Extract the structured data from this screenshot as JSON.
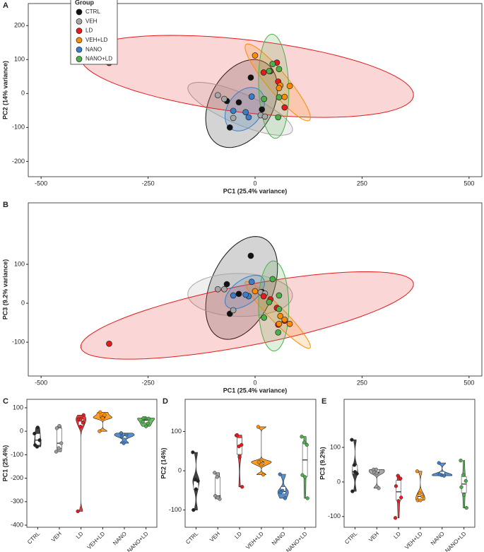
{
  "chart_data": [
    {
      "type": "scatter",
      "panel": "A",
      "xlabel": "PC1 (25.4% variance)",
      "ylabel": "PC2 (14% variance)",
      "xlim": [
        -530,
        530
      ],
      "ylim": [
        -245,
        265
      ],
      "xticks": [
        -500,
        -250,
        0,
        250,
        500
      ],
      "yticks": [
        -200,
        -100,
        0,
        100,
        200
      ],
      "legend_title": "Group",
      "legend": "top-left",
      "series": [
        {
          "name": "CTRL",
          "color": "#111111",
          "x": [
            -10,
            -66,
            -38,
            -59,
            16
          ],
          "values": [
            47,
            -22,
            -26,
            -100,
            -47
          ]
        },
        {
          "name": "VEH",
          "color": "#a6a6a6",
          "x": [
            -87,
            -72,
            -51,
            13,
            23
          ],
          "values": [
            -5,
            -16,
            -72,
            -64,
            -68
          ]
        },
        {
          "name": "LD",
          "color": "#e41a1c",
          "x": [
            -341,
            20,
            36,
            51,
            54,
            69
          ],
          "values": [
            90,
            62,
            66,
            91,
            35,
            -41
          ]
        },
        {
          "name": "VEH+LD",
          "color": "#ff8c00",
          "x": [
            0,
            59,
            69,
            81,
            56
          ],
          "values": [
            112,
            24,
            -10,
            22,
            16
          ]
        },
        {
          "name": "NANO",
          "color": "#3a7dc9",
          "x": [
            -8,
            -51,
            -15,
            -22
          ],
          "values": [
            -9,
            -51,
            -70,
            -55
          ]
        },
        {
          "name": "NANO+LD",
          "color": "#4daf4a",
          "x": [
            41,
            56,
            33,
            56,
            21,
            54
          ],
          "values": [
            87,
            72,
            66,
            -11,
            -16,
            -70
          ]
        }
      ]
    },
    {
      "type": "scatter",
      "panel": "B",
      "xlabel": "PC1 (25.4% variance)",
      "ylabel": "PC3 (9.2% variance)",
      "xlim": [
        -530,
        530
      ],
      "ylim": [
        -187,
        258
      ],
      "xticks": [
        -500,
        -250,
        0,
        250,
        500
      ],
      "yticks": [
        -100,
        0,
        100
      ],
      "series": [
        {
          "color": "#111111",
          "x": [
            -10,
            -66,
            -38,
            -59,
            16
          ],
          "values": [
            122,
            49,
            24,
            -27,
            29
          ]
        },
        {
          "color": "#a6a6a6",
          "x": [
            -87,
            -72,
            -51,
            13,
            23
          ],
          "values": [
            36,
            36,
            -18,
            28,
            25
          ]
        },
        {
          "color": "#e41a1c",
          "x": [
            -341,
            20,
            36,
            51,
            54,
            69
          ],
          "values": [
            -104,
            18,
            10,
            -12,
            -55,
            -45
          ]
        },
        {
          "color": "#ff8c00",
          "x": [
            0,
            59,
            69,
            81,
            56
          ],
          "values": [
            31,
            -33,
            -42,
            -53,
            -53
          ]
        },
        {
          "color": "#3a7dc9",
          "x": [
            -8,
            -51,
            -15,
            -22
          ],
          "values": [
            55,
            20,
            18,
            22
          ]
        },
        {
          "color": "#4daf4a",
          "x": [
            41,
            56,
            33,
            56,
            21,
            54
          ],
          "values": [
            62,
            20,
            3,
            -15,
            -37,
            -75
          ]
        }
      ]
    },
    {
      "type": "violin",
      "panel": "C",
      "ylabel": "PC1 (25.4%)",
      "ylim": [
        -409,
        136
      ],
      "yticks": [
        -400,
        -300,
        -200,
        -100,
        0,
        100
      ],
      "categories": [
        "CTRL",
        "VEH",
        "LD",
        "VEH+LD",
        "NANO",
        "NANO+LD"
      ],
      "colors": [
        "#222222",
        "#9a9a9a",
        "#e41a1c",
        "#ff8c00",
        "#3a7dc9",
        "#4daf4a"
      ],
      "values": [
        [
          -10,
          -66,
          -38,
          -59,
          16
        ],
        [
          -87,
          -72,
          -51,
          13,
          23
        ],
        [
          -341,
          20,
          36,
          51,
          54,
          69
        ],
        [
          0,
          59,
          69,
          81,
          56
        ],
        [
          -8,
          -51,
          -15,
          -22
        ],
        [
          41,
          56,
          33,
          56,
          21,
          54
        ]
      ]
    },
    {
      "type": "violin",
      "panel": "D",
      "ylabel": "PC2 (14%)",
      "ylim": [
        -144,
        182
      ],
      "yticks": [
        -100,
        0,
        100
      ],
      "categories": [
        "CTRL",
        "VEH",
        "LD",
        "VEH+LD",
        "NANO",
        "NANO+LD"
      ],
      "colors": [
        "#222222",
        "#9a9a9a",
        "#e41a1c",
        "#ff8c00",
        "#3a7dc9",
        "#4daf4a"
      ],
      "values": [
        [
          47,
          -22,
          -26,
          -100,
          -47
        ],
        [
          -5,
          -16,
          -72,
          -64,
          -68
        ],
        [
          90,
          62,
          66,
          91,
          35,
          -41
        ],
        [
          112,
          24,
          -10,
          22,
          16
        ],
        [
          -9,
          -51,
          -70,
          -55
        ],
        [
          87,
          72,
          66,
          -11,
          -16,
          -70
        ]
      ]
    },
    {
      "type": "violin",
      "panel": "E",
      "ylabel": "PC3 (9.2%)",
      "ylim": [
        -131,
        239
      ],
      "yticks": [
        -100,
        0,
        100
      ],
      "categories": [
        "CTRL",
        "VEH",
        "LD",
        "VEH+LD",
        "NANO",
        "NANO+LD"
      ],
      "colors": [
        "#222222",
        "#9a9a9a",
        "#e41a1c",
        "#ff8c00",
        "#3a7dc9",
        "#4daf4a"
      ],
      "values": [
        [
          122,
          49,
          24,
          -27,
          29
        ],
        [
          36,
          36,
          -18,
          28,
          25
        ],
        [
          -104,
          18,
          10,
          -12,
          -55,
          -45
        ],
        [
          31,
          -33,
          -42,
          -53,
          -53
        ],
        [
          55,
          20,
          18,
          22
        ],
        [
          62,
          20,
          3,
          -15,
          -37,
          -75
        ]
      ]
    }
  ]
}
